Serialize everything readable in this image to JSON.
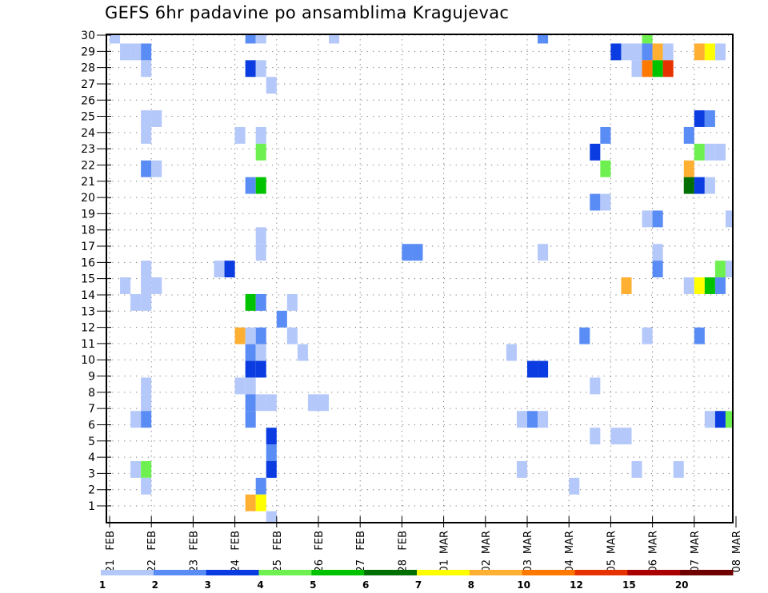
{
  "chart_data": {
    "type": "heatmap",
    "title": "GEFS 6hr padavine po ansamblima Kragujevac",
    "xlabel": "",
    "ylabel": "",
    "y_ticks": [
      "1",
      "2",
      "3",
      "4",
      "5",
      "6",
      "7",
      "8",
      "9",
      "10",
      "11",
      "12",
      "13",
      "14",
      "15",
      "16",
      "17",
      "18",
      "19",
      "20",
      "21",
      "22",
      "23",
      "24",
      "25",
      "26",
      "27",
      "28",
      "29",
      "30"
    ],
    "x_ticks": [
      {
        "day": "21",
        "month": "FEB"
      },
      {
        "day": "22",
        "month": "FEB"
      },
      {
        "day": "23",
        "month": "FEB"
      },
      {
        "day": "24",
        "month": "FEB"
      },
      {
        "day": "25",
        "month": "FEB"
      },
      {
        "day": "26",
        "month": "FEB"
      },
      {
        "day": "27",
        "month": "FEB"
      },
      {
        "day": "28",
        "month": "FEB"
      },
      {
        "day": "01",
        "month": "MAR"
      },
      {
        "day": "02",
        "month": "MAR"
      },
      {
        "day": "03",
        "month": "MAR"
      },
      {
        "day": "04",
        "month": "MAR"
      },
      {
        "day": "05",
        "month": "MAR"
      },
      {
        "day": "06",
        "month": "MAR"
      },
      {
        "day": "07",
        "month": "MAR"
      },
      {
        "day": "08",
        "month": "MAR"
      }
    ],
    "time_step_hours": 6,
    "grid": true,
    "legend": {
      "placement": "bottom",
      "labels": [
        "1",
        "2",
        "3",
        "4",
        "5",
        "6",
        "7",
        "8",
        "10",
        "12",
        "15",
        "20"
      ],
      "colors": [
        "#b4c8fa",
        "#5a8cf5",
        "#0a3ce1",
        "#6ef050",
        "#00c300",
        "#006e00",
        "#ffff00",
        "#ffaf32",
        "#ff7800",
        "#e63200",
        "#aa0000",
        "#6e0000"
      ]
    },
    "cells_note": "each cell: member (y), step = 6h interval index from 21 FEB 00Z (x), level = colour class index 1-12",
    "cells": [
      {
        "m": 30,
        "k": 0,
        "l": 1
      },
      {
        "m": 30,
        "k": 13,
        "l": 2
      },
      {
        "m": 30,
        "k": 14,
        "l": 1
      },
      {
        "m": 30,
        "k": 21,
        "l": 1
      },
      {
        "m": 30,
        "k": 41,
        "l": 2
      },
      {
        "m": 30,
        "k": 51,
        "l": 4
      },
      {
        "m": 29,
        "k": 1,
        "l": 1
      },
      {
        "m": 29,
        "k": 2,
        "l": 1
      },
      {
        "m": 29,
        "k": 3,
        "l": 2
      },
      {
        "m": 29,
        "k": 48,
        "l": 3
      },
      {
        "m": 29,
        "k": 49,
        "l": 1
      },
      {
        "m": 29,
        "k": 50,
        "l": 1
      },
      {
        "m": 29,
        "k": 51,
        "l": 2
      },
      {
        "m": 29,
        "k": 52,
        "l": 8
      },
      {
        "m": 29,
        "k": 53,
        "l": 1
      },
      {
        "m": 29,
        "k": 56,
        "l": 8
      },
      {
        "m": 29,
        "k": 57,
        "l": 7
      },
      {
        "m": 29,
        "k": 58,
        "l": 1
      },
      {
        "m": 28,
        "k": 3,
        "l": 1
      },
      {
        "m": 28,
        "k": 13,
        "l": 3
      },
      {
        "m": 28,
        "k": 14,
        "l": 1
      },
      {
        "m": 28,
        "k": 50,
        "l": 1
      },
      {
        "m": 28,
        "k": 51,
        "l": 9
      },
      {
        "m": 28,
        "k": 52,
        "l": 5
      },
      {
        "m": 28,
        "k": 53,
        "l": 10
      },
      {
        "m": 27,
        "k": 15,
        "l": 1
      },
      {
        "m": 25,
        "k": 3,
        "l": 1
      },
      {
        "m": 25,
        "k": 4,
        "l": 1
      },
      {
        "m": 25,
        "k": 56,
        "l": 3
      },
      {
        "m": 25,
        "k": 57,
        "l": 2
      },
      {
        "m": 24,
        "k": 3,
        "l": 1
      },
      {
        "m": 24,
        "k": 12,
        "l": 1
      },
      {
        "m": 24,
        "k": 14,
        "l": 1
      },
      {
        "m": 24,
        "k": 47,
        "l": 2
      },
      {
        "m": 24,
        "k": 55,
        "l": 2
      },
      {
        "m": 23,
        "k": 14,
        "l": 4
      },
      {
        "m": 23,
        "k": 46,
        "l": 3
      },
      {
        "m": 23,
        "k": 56,
        "l": 4
      },
      {
        "m": 23,
        "k": 57,
        "l": 1
      },
      {
        "m": 23,
        "k": 58,
        "l": 1
      },
      {
        "m": 22,
        "k": 3,
        "l": 2
      },
      {
        "m": 22,
        "k": 4,
        "l": 1
      },
      {
        "m": 22,
        "k": 47,
        "l": 4
      },
      {
        "m": 22,
        "k": 55,
        "l": 8
      },
      {
        "m": 21,
        "k": 13,
        "l": 2
      },
      {
        "m": 21,
        "k": 14,
        "l": 5
      },
      {
        "m": 21,
        "k": 55,
        "l": 6
      },
      {
        "m": 21,
        "k": 56,
        "l": 3
      },
      {
        "m": 21,
        "k": 57,
        "l": 1
      },
      {
        "m": 20,
        "k": 46,
        "l": 2
      },
      {
        "m": 20,
        "k": 47,
        "l": 1
      },
      {
        "m": 19,
        "k": 51,
        "l": 1
      },
      {
        "m": 19,
        "k": 52,
        "l": 2
      },
      {
        "m": 19,
        "k": 59,
        "l": 1
      },
      {
        "m": 18,
        "k": 14,
        "l": 1
      },
      {
        "m": 17,
        "k": 14,
        "l": 1
      },
      {
        "m": 17,
        "k": 28,
        "l": 2
      },
      {
        "m": 17,
        "k": 29,
        "l": 2
      },
      {
        "m": 17,
        "k": 41,
        "l": 1
      },
      {
        "m": 17,
        "k": 52,
        "l": 1
      },
      {
        "m": 16,
        "k": 3,
        "l": 1
      },
      {
        "m": 16,
        "k": 10,
        "l": 1
      },
      {
        "m": 16,
        "k": 11,
        "l": 3
      },
      {
        "m": 16,
        "k": 52,
        "l": 2
      },
      {
        "m": 16,
        "k": 58,
        "l": 4
      },
      {
        "m": 16,
        "k": 59,
        "l": 1
      },
      {
        "m": 15,
        "k": 1,
        "l": 1
      },
      {
        "m": 15,
        "k": 3,
        "l": 1
      },
      {
        "m": 15,
        "k": 4,
        "l": 1
      },
      {
        "m": 15,
        "k": 49,
        "l": 8
      },
      {
        "m": 15,
        "k": 55,
        "l": 1
      },
      {
        "m": 15,
        "k": 56,
        "l": 7
      },
      {
        "m": 15,
        "k": 57,
        "l": 5
      },
      {
        "m": 15,
        "k": 58,
        "l": 2
      },
      {
        "m": 14,
        "k": 2,
        "l": 1
      },
      {
        "m": 14,
        "k": 3,
        "l": 1
      },
      {
        "m": 14,
        "k": 13,
        "l": 5
      },
      {
        "m": 14,
        "k": 14,
        "l": 2
      },
      {
        "m": 14,
        "k": 17,
        "l": 1
      },
      {
        "m": 13,
        "k": 16,
        "l": 2
      },
      {
        "m": 12,
        "k": 12,
        "l": 8
      },
      {
        "m": 12,
        "k": 13,
        "l": 1
      },
      {
        "m": 12,
        "k": 14,
        "l": 2
      },
      {
        "m": 12,
        "k": 17,
        "l": 1
      },
      {
        "m": 12,
        "k": 45,
        "l": 2
      },
      {
        "m": 12,
        "k": 51,
        "l": 1
      },
      {
        "m": 12,
        "k": 56,
        "l": 2
      },
      {
        "m": 11,
        "k": 13,
        "l": 2
      },
      {
        "m": 11,
        "k": 14,
        "l": 1
      },
      {
        "m": 11,
        "k": 18,
        "l": 1
      },
      {
        "m": 11,
        "k": 38,
        "l": 1
      },
      {
        "m": 10,
        "k": 13,
        "l": 3
      },
      {
        "m": 10,
        "k": 14,
        "l": 3
      },
      {
        "m": 10,
        "k": 40,
        "l": 3
      },
      {
        "m": 10,
        "k": 41,
        "l": 3
      },
      {
        "m": 9,
        "k": 3,
        "l": 1
      },
      {
        "m": 9,
        "k": 12,
        "l": 1
      },
      {
        "m": 9,
        "k": 13,
        "l": 1
      },
      {
        "m": 9,
        "k": 46,
        "l": 1
      },
      {
        "m": 8,
        "k": 3,
        "l": 1
      },
      {
        "m": 8,
        "k": 13,
        "l": 2
      },
      {
        "m": 8,
        "k": 14,
        "l": 1
      },
      {
        "m": 8,
        "k": 15,
        "l": 1
      },
      {
        "m": 8,
        "k": 19,
        "l": 1
      },
      {
        "m": 8,
        "k": 20,
        "l": 1
      },
      {
        "m": 7,
        "k": 2,
        "l": 1
      },
      {
        "m": 7,
        "k": 3,
        "l": 2
      },
      {
        "m": 7,
        "k": 13,
        "l": 2
      },
      {
        "m": 7,
        "k": 39,
        "l": 1
      },
      {
        "m": 7,
        "k": 40,
        "l": 2
      },
      {
        "m": 7,
        "k": 41,
        "l": 1
      },
      {
        "m": 7,
        "k": 57,
        "l": 1
      },
      {
        "m": 7,
        "k": 58,
        "l": 3
      },
      {
        "m": 7,
        "k": 59,
        "l": 4
      },
      {
        "m": 6,
        "k": 15,
        "l": 3
      },
      {
        "m": 6,
        "k": 46,
        "l": 1
      },
      {
        "m": 6,
        "k": 48,
        "l": 1
      },
      {
        "m": 6,
        "k": 49,
        "l": 1
      },
      {
        "m": 5,
        "k": 15,
        "l": 2
      },
      {
        "m": 4,
        "k": 2,
        "l": 1
      },
      {
        "m": 4,
        "k": 3,
        "l": 4
      },
      {
        "m": 4,
        "k": 15,
        "l": 3
      },
      {
        "m": 4,
        "k": 39,
        "l": 1
      },
      {
        "m": 4,
        "k": 50,
        "l": 1
      },
      {
        "m": 4,
        "k": 54,
        "l": 1
      },
      {
        "m": 3,
        "k": 3,
        "l": 1
      },
      {
        "m": 3,
        "k": 14,
        "l": 2
      },
      {
        "m": 3,
        "k": 44,
        "l": 1
      },
      {
        "m": 2,
        "k": 13,
        "l": 8
      },
      {
        "m": 2,
        "k": 14,
        "l": 7
      },
      {
        "m": 1,
        "k": 15,
        "l": 1
      }
    ]
  }
}
